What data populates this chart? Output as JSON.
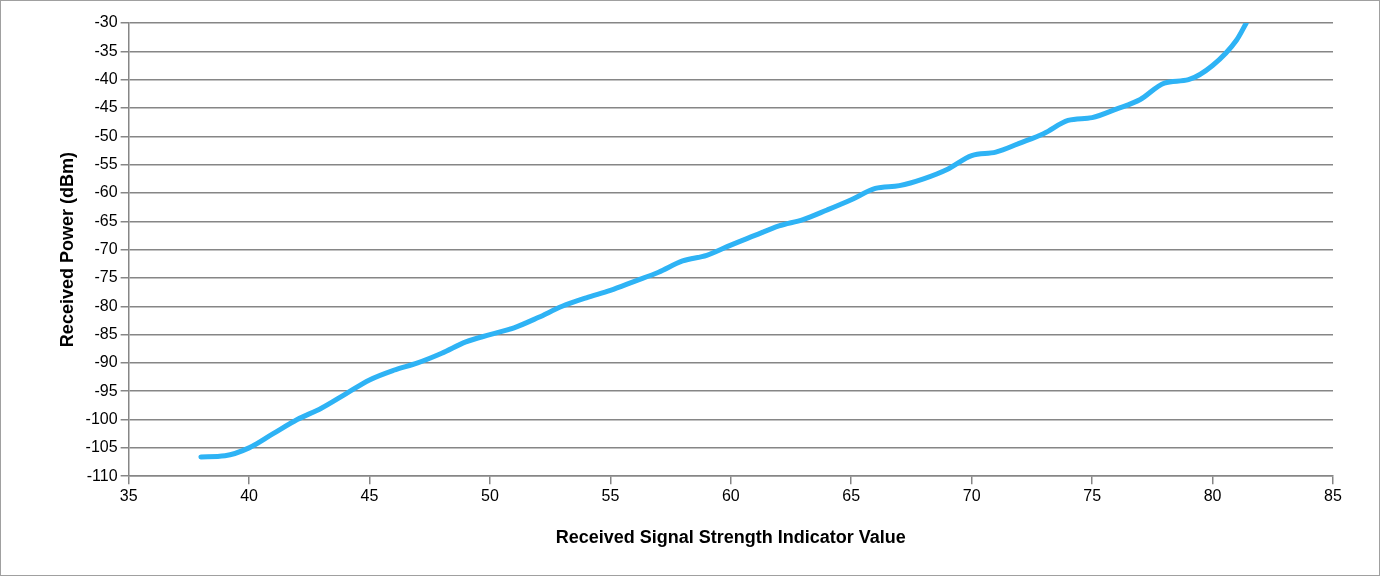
{
  "chart_data": {
    "type": "line",
    "xlabel": "Received Signal Strength Indicator Value",
    "ylabel": "Received Power (dBm)",
    "xlim": [
      35,
      85
    ],
    "xticks": [
      35,
      40,
      45,
      50,
      55,
      60,
      65,
      70,
      75,
      80,
      85
    ],
    "ylim": [
      -110,
      -30
    ],
    "yticks": [
      -110,
      -105,
      -100,
      -95,
      -90,
      -85,
      -80,
      -75,
      -70,
      -65,
      -60,
      -55,
      -50,
      -45,
      -40,
      -35,
      -30
    ],
    "grid": "y",
    "legend": false,
    "marker": "none",
    "line_style": "solid",
    "series": [
      {
        "color": "#2eb3f5",
        "x": [
          38,
          39,
          40,
          41,
          42,
          43,
          44,
          45,
          46,
          47,
          48,
          49,
          50,
          51,
          52,
          53,
          54,
          55,
          56,
          57,
          58,
          59,
          60,
          61,
          62,
          63,
          64,
          65,
          66,
          67,
          68,
          69,
          70,
          71,
          72,
          73,
          74,
          75,
          76,
          77,
          78,
          79,
          80,
          81,
          81.4
        ],
        "values": [
          -106.6,
          -106.4,
          -105,
          -102.5,
          -100,
          -98,
          -95.5,
          -93,
          -91.3,
          -90,
          -88.3,
          -86.3,
          -85,
          -83.8,
          -82,
          -80,
          -78.5,
          -77.2,
          -75.6,
          -74,
          -72,
          -71,
          -69.2,
          -67.5,
          -65.8,
          -64.7,
          -63,
          -61.2,
          -59.2,
          -58.7,
          -57.5,
          -55.8,
          -53.4,
          -52.8,
          -51.2,
          -49.5,
          -47.2,
          -46.7,
          -45.2,
          -43.5,
          -40.6,
          -40,
          -37.5,
          -33,
          -30
        ]
      }
    ]
  }
}
